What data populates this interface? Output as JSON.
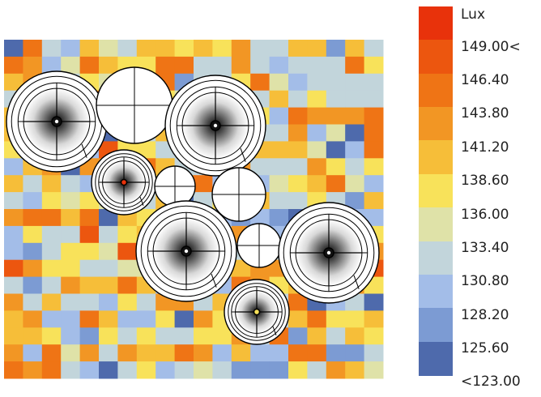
{
  "legend": {
    "title": "Lux",
    "ticks": [
      "149.00<",
      "146.40",
      "143.80",
      "141.20",
      "138.60",
      "136.00",
      "133.40",
      "130.80",
      "128.20",
      "125.60",
      "<123.00"
    ],
    "colors": [
      "#e8320b",
      "#ec560f",
      "#ef7415",
      "#f29624",
      "#f6be39",
      "#f8e25a",
      "#dfe2a8",
      "#c2d5db",
      "#a3bde8",
      "#7c9bd3",
      "#4e6aac"
    ]
  },
  "heatmap": {
    "rows": 20,
    "cols": 20,
    "palette": [
      "#4e6aac",
      "#7c9bd3",
      "#a3bde8",
      "#c2d5db",
      "#dfe2a8",
      "#f8e25a",
      "#f6be39",
      "#f29624",
      "#ef7415",
      "#ec560f"
    ]
  },
  "luminaires": [
    {
      "kind": "large",
      "center_color": "#111111"
    },
    {
      "kind": "blank-large"
    },
    {
      "kind": "large",
      "center_color": "#111111"
    },
    {
      "kind": "medium",
      "center_color": "#e8320b"
    },
    {
      "kind": "blank-small"
    },
    {
      "kind": "blank-medium"
    },
    {
      "kind": "large",
      "center_color": "#111111"
    },
    {
      "kind": "blank-small"
    },
    {
      "kind": "large",
      "center_color": "#111111"
    },
    {
      "kind": "medium",
      "center_color": "#f8e25a"
    }
  ]
}
